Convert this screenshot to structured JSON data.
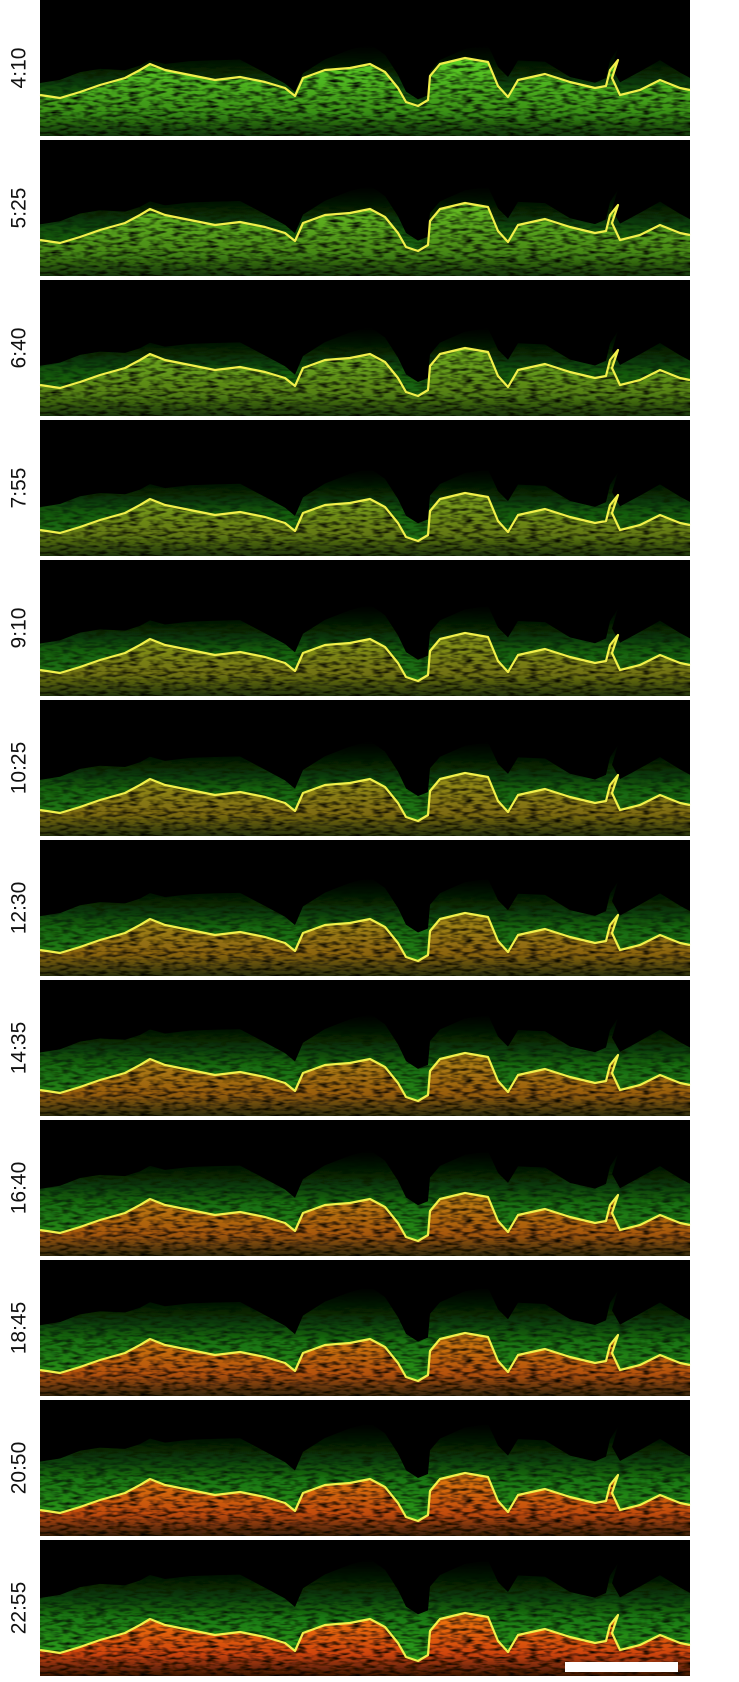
{
  "panels": [
    {
      "label": "4:10"
    },
    {
      "label": "5:25"
    },
    {
      "label": "6:40"
    },
    {
      "label": "7:55"
    },
    {
      "label": "9:10"
    },
    {
      "label": "10:25"
    },
    {
      "label": "12:30"
    },
    {
      "label": "14:35"
    },
    {
      "label": "16:40"
    },
    {
      "label": "18:45"
    },
    {
      "label": "20:50"
    },
    {
      "label": "22:55"
    }
  ]
}
